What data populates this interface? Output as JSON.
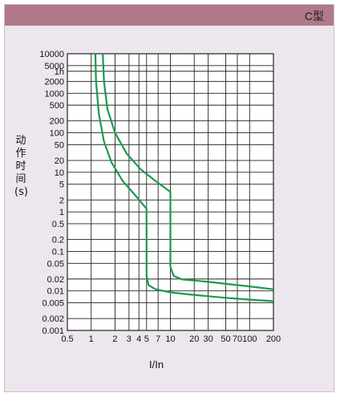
{
  "header": {
    "title": "C型"
  },
  "chart_data": {
    "type": "line",
    "title": "C型",
    "xlabel": "I/In",
    "ylabel_chars": [
      "动",
      "作",
      "时",
      "间",
      "(s)"
    ],
    "x_scale": "log",
    "y_scale": "log",
    "xlim": [
      0.5,
      200
    ],
    "ylim": [
      0.001,
      10000
    ],
    "grid": true,
    "x_ticks": [
      {
        "v": 0.5,
        "label": "0.5"
      },
      {
        "v": 1,
        "label": "1"
      },
      {
        "v": 2,
        "label": "2"
      },
      {
        "v": 3,
        "label": "3"
      },
      {
        "v": 4,
        "label": "4"
      },
      {
        "v": 5,
        "label": "5"
      },
      {
        "v": 7,
        "label": "7"
      },
      {
        "v": 10,
        "label": "10"
      },
      {
        "v": 20,
        "label": "20"
      },
      {
        "v": 30,
        "label": "30"
      },
      {
        "v": 50,
        "label": "50"
      },
      {
        "v": 70,
        "label": "70"
      },
      {
        "v": 100,
        "label": "100"
      },
      {
        "v": 200,
        "label": "200"
      }
    ],
    "y_ticks": [
      {
        "v": 10000,
        "label": "10000"
      },
      {
        "v": 5000,
        "label": "5000"
      },
      {
        "v": 3600,
        "label": "1h"
      },
      {
        "v": 2000,
        "label": "2000"
      },
      {
        "v": 1000,
        "label": "1000"
      },
      {
        "v": 500,
        "label": "500"
      },
      {
        "v": 200,
        "label": "200"
      },
      {
        "v": 100,
        "label": "100"
      },
      {
        "v": 50,
        "label": "50"
      },
      {
        "v": 20,
        "label": "20"
      },
      {
        "v": 10,
        "label": "10"
      },
      {
        "v": 5,
        "label": "5"
      },
      {
        "v": 2,
        "label": "2"
      },
      {
        "v": 1,
        "label": "1"
      },
      {
        "v": 0.5,
        "label": "0.5"
      },
      {
        "v": 0.2,
        "label": "0.2"
      },
      {
        "v": 0.1,
        "label": "0.1"
      },
      {
        "v": 0.05,
        "label": "0.05"
      },
      {
        "v": 0.02,
        "label": "0.02"
      },
      {
        "v": 0.01,
        "label": "0.01"
      },
      {
        "v": 0.005,
        "label": "0.005"
      },
      {
        "v": 0.002,
        "label": "0.002"
      },
      {
        "v": 0.001,
        "label": "0.001"
      }
    ],
    "series": [
      {
        "color": "#1a9a4c",
        "points": [
          [
            1.13,
            10000
          ],
          [
            1.15,
            2000
          ],
          [
            1.25,
            300
          ],
          [
            1.45,
            60
          ],
          [
            1.8,
            18
          ],
          [
            2.5,
            6
          ],
          [
            3.5,
            2.8
          ],
          [
            5.0,
            1.2
          ],
          [
            5.0,
            0.024
          ],
          [
            5.3,
            0.014
          ],
          [
            6.5,
            0.011
          ],
          [
            10,
            0.0092
          ],
          [
            20,
            0.0079
          ],
          [
            50,
            0.0067
          ],
          [
            100,
            0.006
          ],
          [
            200,
            0.0055
          ]
        ]
      },
      {
        "color": "#1a9a4c",
        "points": [
          [
            1.4,
            10000
          ],
          [
            1.45,
            2000
          ],
          [
            1.6,
            400
          ],
          [
            2.0,
            100
          ],
          [
            2.8,
            30
          ],
          [
            4.2,
            12
          ],
          [
            6.5,
            6
          ],
          [
            10,
            3.2
          ],
          [
            10,
            0.04
          ],
          [
            11,
            0.024
          ],
          [
            14,
            0.0195
          ],
          [
            30,
            0.017
          ],
          [
            60,
            0.0145
          ],
          [
            100,
            0.013
          ],
          [
            200,
            0.011
          ]
        ]
      }
    ]
  }
}
